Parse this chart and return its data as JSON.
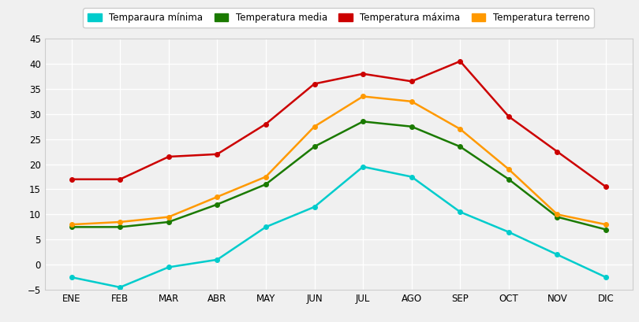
{
  "months": [
    "ENE",
    "FEB",
    "MAR",
    "ABR",
    "MAY",
    "JUN",
    "JUL",
    "AGO",
    "SEP",
    "OCT",
    "NOV",
    "DIC"
  ],
  "temp_minima": [
    -2.5,
    -4.5,
    -0.5,
    1.0,
    7.5,
    11.5,
    19.5,
    17.5,
    10.5,
    6.5,
    2.0,
    -2.5
  ],
  "temp_media": [
    7.5,
    7.5,
    8.5,
    12.0,
    16.0,
    23.5,
    28.5,
    27.5,
    23.5,
    17.0,
    9.5,
    7.0
  ],
  "temp_maxima": [
    17.0,
    17.0,
    21.5,
    22.0,
    28.0,
    36.0,
    38.0,
    36.5,
    40.5,
    29.5,
    22.5,
    15.5
  ],
  "temp_terreno": [
    8.0,
    8.5,
    9.5,
    13.5,
    17.5,
    27.5,
    33.5,
    32.5,
    27.0,
    19.0,
    10.0,
    8.0
  ],
  "color_minima": "#00cccc",
  "color_media": "#1a7a00",
  "color_maxima": "#cc0000",
  "color_terreno": "#ff9900",
  "label_minima": "Temparaura mínima",
  "label_media": "Temperatura media",
  "label_maxima": "Temperatura máxima",
  "label_terreno": "Temperatura terreno",
  "ylim": [
    -5,
    45
  ],
  "yticks": [
    -5,
    0,
    5,
    10,
    15,
    20,
    25,
    30,
    35,
    40,
    45
  ],
  "bg_color": "#f0f0f0",
  "grid_color": "#ffffff",
  "marker": "o",
  "markersize": 4,
  "linewidth": 1.8
}
